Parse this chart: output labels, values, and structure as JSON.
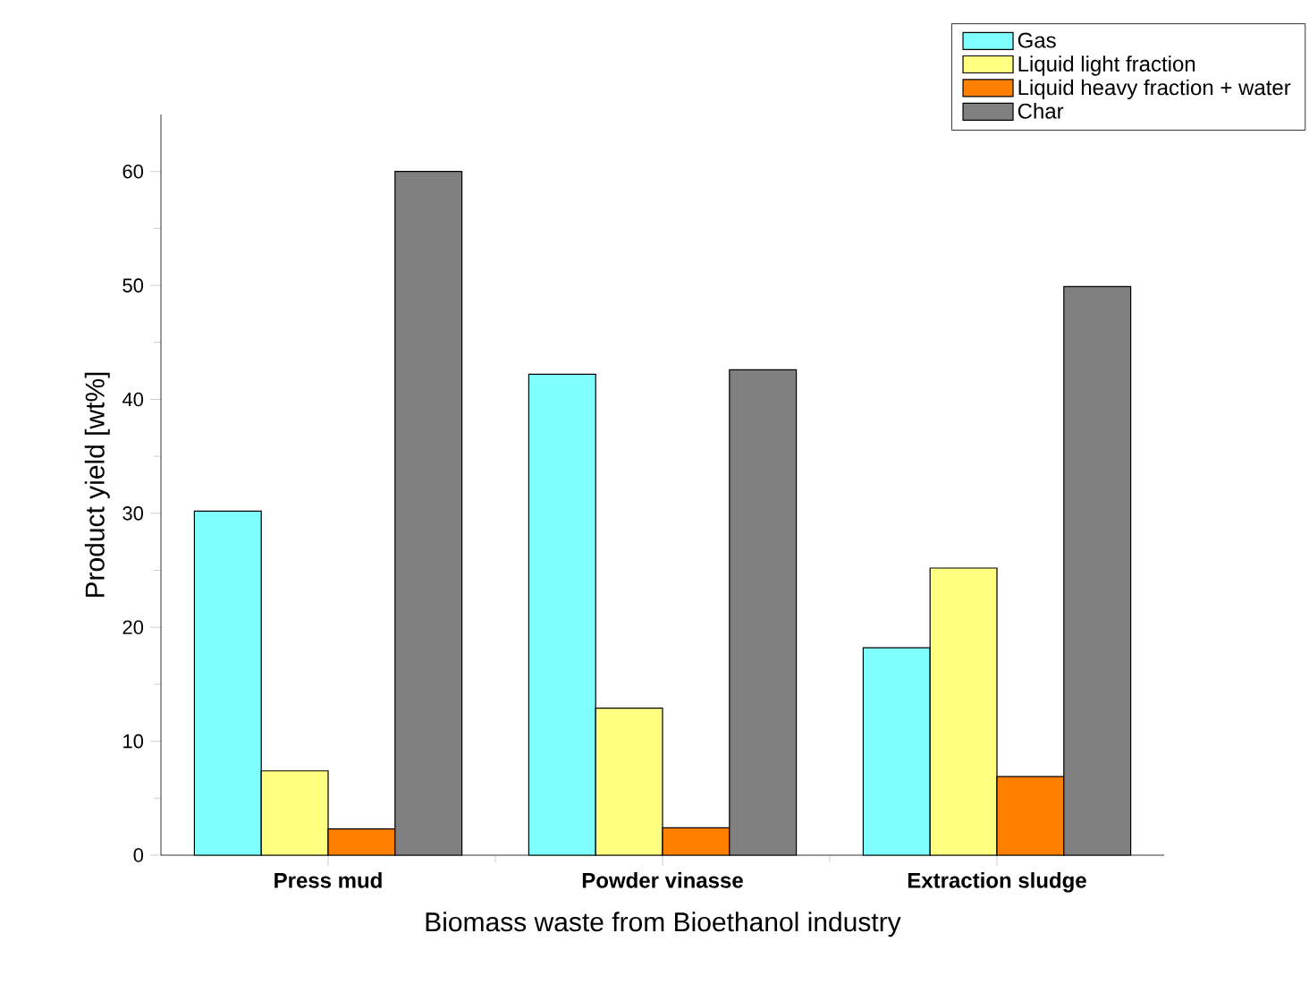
{
  "chart_data": {
    "type": "bar",
    "xlabel": "Biomass waste from Bioethanol industry",
    "ylabel": "Product yield [wt%]",
    "categories": [
      "Press mud",
      "Powder vinasse",
      "Extraction sludge"
    ],
    "series": [
      {
        "name": "Gas",
        "color": "#80ffff",
        "values": [
          30.2,
          42.2,
          18.2
        ]
      },
      {
        "name": "Liquid light fraction",
        "color": "#ffff80",
        "values": [
          7.4,
          12.9,
          25.2
        ]
      },
      {
        "name": "Liquid heavy fraction + water",
        "color": "#ff8000",
        "values": [
          2.3,
          2.4,
          6.9
        ]
      },
      {
        "name": "Char",
        "color": "#808080",
        "values": [
          60,
          42.6,
          49.9
        ]
      }
    ],
    "ylim": [
      0,
      65
    ],
    "yticks": [
      0,
      10,
      20,
      30,
      40,
      50,
      60
    ],
    "legend": "top right"
  }
}
